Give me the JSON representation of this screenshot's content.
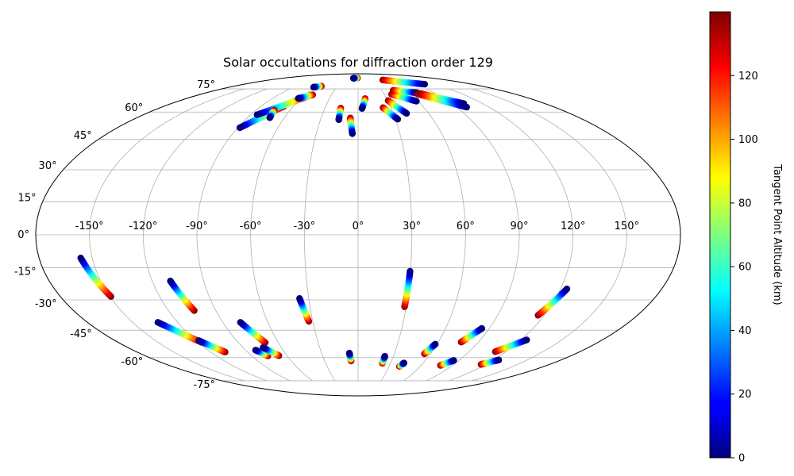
{
  "chart_data": {
    "type": "scatter",
    "projection": "mollweide",
    "title": "Solar occultations for diffraction order 129",
    "grid": true,
    "lon_ticks": [
      "-150°",
      "-120°",
      "-90°",
      "-60°",
      "-30°",
      "0°",
      "30°",
      "60°",
      "90°",
      "120°",
      "150°"
    ],
    "lon_tick_values": [
      -150,
      -120,
      -90,
      -60,
      -30,
      0,
      30,
      60,
      90,
      120,
      150
    ],
    "lat_ticks": [
      "75°",
      "60°",
      "45°",
      "30°",
      "15°",
      "0°",
      "-15°",
      "-30°",
      "-45°",
      "-60°",
      "-75°"
    ],
    "lat_tick_values": [
      75,
      60,
      45,
      30,
      15,
      0,
      -15,
      -30,
      -45,
      -60,
      -75
    ],
    "colorbar": {
      "label": "Tangent Point Altitude (km)",
      "colormap": "jet",
      "range": [
        0,
        140
      ],
      "ticks": [
        "0",
        "20",
        "40",
        "60",
        "80",
        "100",
        "120"
      ],
      "tick_values": [
        0,
        20,
        40,
        60,
        80,
        100,
        120
      ]
    },
    "series": [
      {
        "lon0": -156.5,
        "lat0": -10.5,
        "lon1": -149.4,
        "lat1": -28.4
      },
      {
        "lon0": -109.4,
        "lat0": -21.1,
        "lon1": -103.7,
        "lat1": -35.2
      },
      {
        "lon0": -133.2,
        "lat0": -41.0,
        "lon1": -117.5,
        "lat1": -51.4
      },
      {
        "lon0": -118.0,
        "lat0": -50.5,
        "lon1": -108.3,
        "lat1": -56.8
      },
      {
        "lon0": -78.3,
        "lat0": -41.0,
        "lon1": -69.8,
        "lat1": -51.6
      },
      {
        "lon0": -82.0,
        "lat0": -55.7,
        "lon1": -76.4,
        "lat1": -59.0
      },
      {
        "lon0": -74.3,
        "lat0": -54.3,
        "lon1": -66.9,
        "lat1": -58.9
      },
      {
        "lon0": -35.6,
        "lat0": -29.3,
        "lon1": -32.6,
        "lat1": -40.5
      },
      {
        "lon0": -7.2,
        "lat0": -57.4,
        "lon1": -6.3,
        "lat1": -62.0
      },
      {
        "lon0": 29.8,
        "lat0": -16.6,
        "lon1": 29.0,
        "lat1": -33.3
      },
      {
        "lon0": 22.7,
        "lat0": -59.2,
        "lon1": 22.5,
        "lat1": -63.4
      },
      {
        "lon0": 42.3,
        "lat0": -63.2,
        "lon1": 40.0,
        "lat1": -65.3
      },
      {
        "lon0": 58.7,
        "lat0": -52.4,
        "lon1": 55.0,
        "lat1": -57.8
      },
      {
        "lon0": 84.9,
        "lat0": -44.1,
        "lon1": 77.2,
        "lat1": -51.3
      },
      {
        "lon0": 85.4,
        "lat0": -61.7,
        "lon1": 78.6,
        "lat1": -64.7
      },
      {
        "lon0": 123.8,
        "lat0": -24.8,
        "lon1": 116.0,
        "lat1": -37.5
      },
      {
        "lon0": 124.2,
        "lat0": -50.1,
        "lon1": 111.4,
        "lat1": -56.6
      },
      {
        "lon0": 124.8,
        "lat0": -61.4,
        "lon1": 115.7,
        "lat1": -64.1
      },
      {
        "lon0": -88.4,
        "lat0": 51.2,
        "lon1": -69.0,
        "lat1": 63.3
      },
      {
        "lon0": -84.6,
        "lat0": 58.4,
        "lon1": -54.5,
        "lat1": 70.1
      },
      {
        "lon0": -71.8,
        "lat0": 56.7,
        "lon1": -73.8,
        "lat1": 61.0
      },
      {
        "lon0": -62.8,
        "lat0": 68.4,
        "lon1": -51.3,
        "lat1": 70.8
      },
      {
        "lon0": -62.2,
        "lat0": 76.3,
        "lon1": -53.1,
        "lat1": 77.0
      },
      {
        "lon0": -15.4,
        "lat0": 55.6,
        "lon1": -15.7,
        "lat1": 62.3
      },
      {
        "lon0": -4.1,
        "lat0": 48.0,
        "lon1": -6.3,
        "lat1": 56.6
      },
      {
        "lon0": 3.5,
        "lat0": 62.1,
        "lon1": 7.4,
        "lat1": 68.3
      },
      {
        "lon0": -11.3,
        "lat0": 84.0,
        "lon1": -1.6,
        "lat1": 84.3
      },
      {
        "lon0": 31.8,
        "lat0": 55.9,
        "lon1": 22.7,
        "lat1": 62.6
      },
      {
        "lon0": 41.2,
        "lat0": 59.2,
        "lon1": 30.4,
        "lat1": 67.0
      },
      {
        "lon0": 58.3,
        "lat0": 66.6,
        "lon1": 38.3,
        "lat1": 71.2
      },
      {
        "lon0": 69.7,
        "lat0": 72.2,
        "lon1": 44.2,
        "lat1": 73.9
      },
      {
        "lon0": 104.8,
        "lat0": 78.6,
        "lon1": 50.1,
        "lat1": 82.3
      },
      {
        "lon0": 99.4,
        "lat0": 62.9,
        "lon1": 68.3,
        "lat1": 71.4
      },
      {
        "lon0": 101.8,
        "lat0": 65.1,
        "lon1": 72.9,
        "lat1": 71.7
      }
    ]
  }
}
